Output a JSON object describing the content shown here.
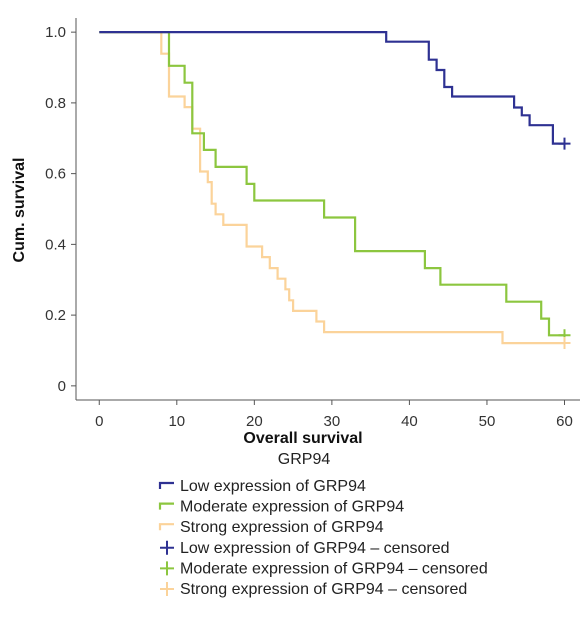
{
  "chart_data": {
    "type": "line",
    "step": true,
    "title": "",
    "xlabel": "Overall survival",
    "ylabel": "Cum. survival",
    "xlim": [
      -3,
      62
    ],
    "ylim": [
      -0.04,
      1.04
    ],
    "xticks": [
      0,
      10,
      20,
      30,
      40,
      50,
      60
    ],
    "yticks": [
      0,
      0.2,
      0.4,
      0.6,
      0.8,
      1.0
    ],
    "ytick_labels": [
      "0",
      "0.2",
      "0.4",
      "0.6",
      "0.8",
      "1.0"
    ],
    "grid": false,
    "legend_title": "GRP94",
    "legend_position": "bottom",
    "series": [
      {
        "name": "Low expression of GRP94",
        "color": "#2e3192",
        "points": [
          [
            0,
            1.0
          ],
          [
            37,
            1.0
          ],
          [
            37,
            0.973
          ],
          [
            42.5,
            0.973
          ],
          [
            42.5,
            0.922
          ],
          [
            43.5,
            0.922
          ],
          [
            43.5,
            0.893
          ],
          [
            44.5,
            0.893
          ],
          [
            44.5,
            0.845
          ],
          [
            45.5,
            0.845
          ],
          [
            45.5,
            0.818
          ],
          [
            53.5,
            0.818
          ],
          [
            53.5,
            0.787
          ],
          [
            54.5,
            0.787
          ],
          [
            54.5,
            0.765
          ],
          [
            55.5,
            0.765
          ],
          [
            55.5,
            0.737
          ],
          [
            58.5,
            0.737
          ],
          [
            58.5,
            0.685
          ],
          [
            60,
            0.685
          ]
        ]
      },
      {
        "name": "Moderate expression of GRP94",
        "color": "#8cc63f",
        "points": [
          [
            0,
            1.0
          ],
          [
            9,
            1.0
          ],
          [
            9,
            0.905
          ],
          [
            11,
            0.905
          ],
          [
            11,
            0.857
          ],
          [
            12,
            0.857
          ],
          [
            12,
            0.714
          ],
          [
            13.5,
            0.714
          ],
          [
            13.5,
            0.667
          ],
          [
            15,
            0.667
          ],
          [
            15,
            0.619
          ],
          [
            19,
            0.619
          ],
          [
            19,
            0.571
          ],
          [
            20,
            0.571
          ],
          [
            20,
            0.524
          ],
          [
            29,
            0.524
          ],
          [
            29,
            0.476
          ],
          [
            33,
            0.476
          ],
          [
            33,
            0.381
          ],
          [
            42,
            0.381
          ],
          [
            42,
            0.333
          ],
          [
            44,
            0.333
          ],
          [
            44,
            0.286
          ],
          [
            52.5,
            0.286
          ],
          [
            52.5,
            0.238
          ],
          [
            57,
            0.238
          ],
          [
            57,
            0.19
          ],
          [
            58,
            0.19
          ],
          [
            58,
            0.143
          ],
          [
            60,
            0.143
          ]
        ]
      },
      {
        "name": "Strong expression of GRP94",
        "color": "#fbd39a",
        "points": [
          [
            0,
            1.0
          ],
          [
            8,
            1.0
          ],
          [
            8,
            0.939
          ],
          [
            9,
            0.939
          ],
          [
            9,
            0.818
          ],
          [
            11,
            0.818
          ],
          [
            11,
            0.788
          ],
          [
            12,
            0.788
          ],
          [
            12,
            0.727
          ],
          [
            13,
            0.727
          ],
          [
            13,
            0.606
          ],
          [
            14,
            0.606
          ],
          [
            14,
            0.576
          ],
          [
            14.5,
            0.576
          ],
          [
            14.5,
            0.515
          ],
          [
            15,
            0.515
          ],
          [
            15,
            0.485
          ],
          [
            16,
            0.485
          ],
          [
            16,
            0.455
          ],
          [
            19,
            0.455
          ],
          [
            19,
            0.394
          ],
          [
            21,
            0.394
          ],
          [
            21,
            0.364
          ],
          [
            22,
            0.364
          ],
          [
            22,
            0.333
          ],
          [
            23,
            0.333
          ],
          [
            23,
            0.303
          ],
          [
            24,
            0.303
          ],
          [
            24,
            0.273
          ],
          [
            24.5,
            0.273
          ],
          [
            24.5,
            0.242
          ],
          [
            25,
            0.242
          ],
          [
            25,
            0.212
          ],
          [
            28,
            0.212
          ],
          [
            28,
            0.182
          ],
          [
            29,
            0.182
          ],
          [
            29,
            0.152
          ],
          [
            52,
            0.152
          ],
          [
            52,
            0.121
          ],
          [
            60,
            0.121
          ]
        ]
      }
    ],
    "censored_series": [
      {
        "name": "Low expression of GRP94 – censored",
        "color": "#2e3192",
        "points": [
          [
            60,
            0.685
          ]
        ]
      },
      {
        "name": "Moderate expression of GRP94 – censored",
        "color": "#8cc63f",
        "points": [
          [
            60,
            0.143
          ]
        ]
      },
      {
        "name": "Strong expression of GRP94 – censored",
        "color": "#fbd39a",
        "points": [
          [
            60,
            0.121
          ]
        ]
      }
    ]
  }
}
